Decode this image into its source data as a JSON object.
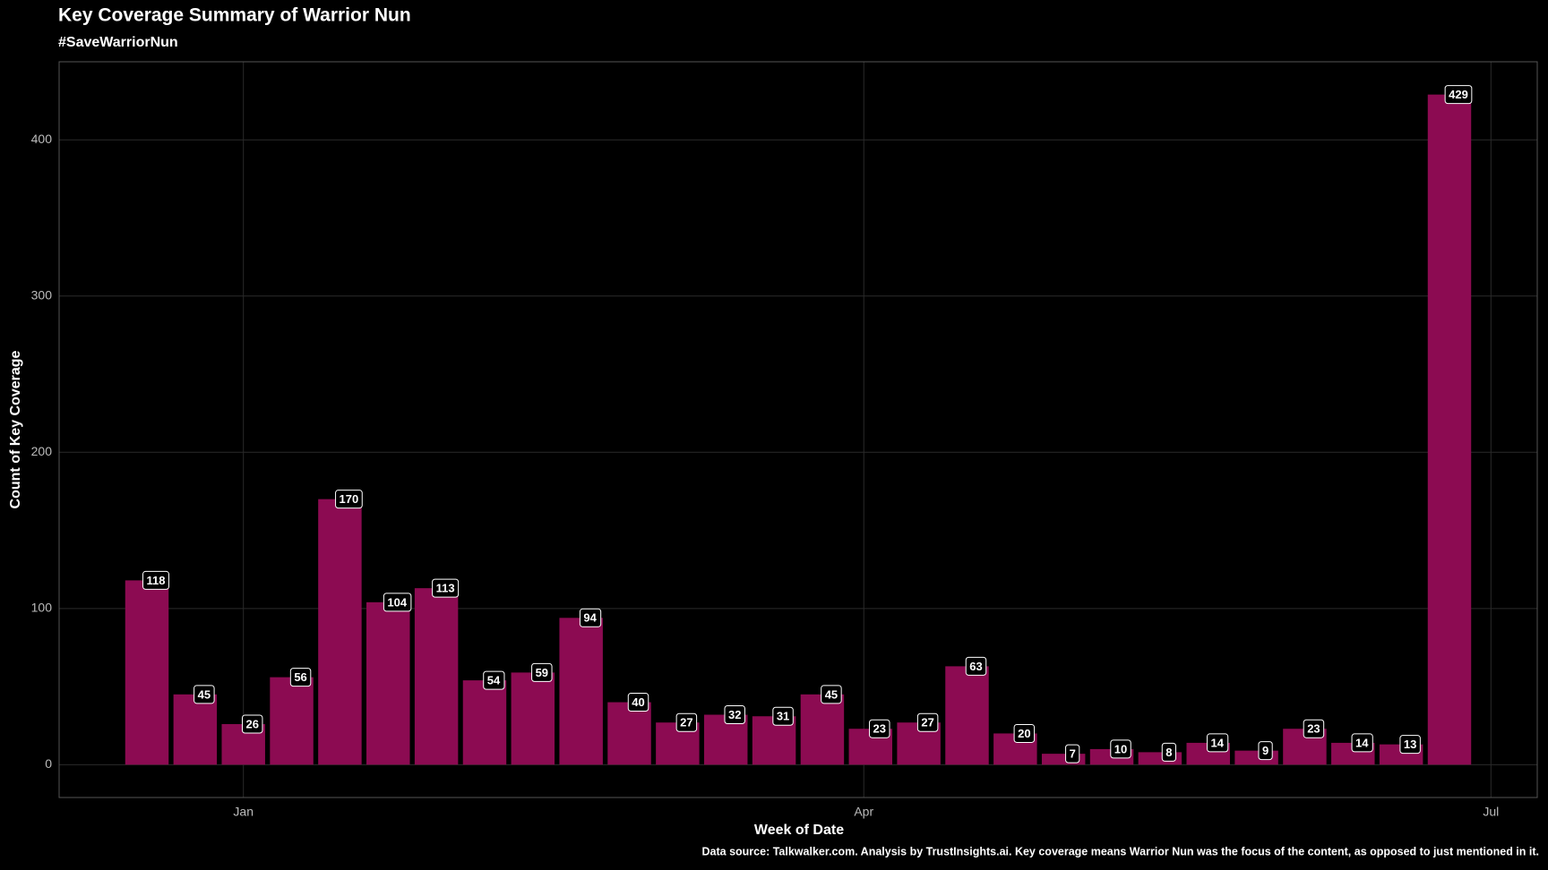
{
  "chart_data": {
    "type": "bar",
    "title": "Key Coverage Summary of Warrior Nun",
    "subtitle": "#SaveWarriorNun",
    "x_label": "Week of Date",
    "y_label": "Count of Key Coverage",
    "caption": "Data source: Talkwalker.com. Analysis by TrustInsights.ai. Key coverage means Warrior Nun was the focus of the content, as opposed to just mentioned in it.",
    "categories": [
      null,
      null,
      null,
      null,
      null,
      null,
      null,
      null,
      null,
      null,
      null,
      null,
      null,
      null,
      null,
      null,
      null,
      null,
      null,
      null,
      null,
      null,
      null,
      null,
      null,
      null,
      null,
      null
    ],
    "values": [
      118,
      45,
      26,
      56,
      170,
      104,
      113,
      54,
      59,
      94,
      40,
      27,
      32,
      31,
      45,
      23,
      27,
      63,
      20,
      7,
      10,
      8,
      14,
      9,
      23,
      14,
      13,
      429
    ],
    "color": "#8c0b52",
    "xlim": [
      -1.82,
      28.82
    ],
    "xticks": [
      {
        "value": 2,
        "label": "Jan"
      },
      {
        "value": 14.86,
        "label": "Apr"
      },
      {
        "value": 27.86,
        "label": "Jul"
      }
    ],
    "ylim": [
      -21,
      450
    ],
    "yticks": [
      0,
      100,
      200,
      300,
      400
    ],
    "grid": true
  }
}
